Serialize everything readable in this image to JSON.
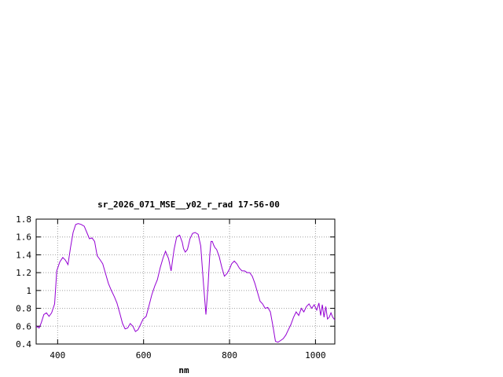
{
  "chart_data": {
    "type": "line",
    "title": "sr_2026_071_MSE__y02_r_rad 17-56-00",
    "xlabel": "nm",
    "ylabel": "",
    "xlim": [
      350,
      1045
    ],
    "ylim": [
      0.4,
      1.8
    ],
    "x_ticks": [
      400,
      600,
      800,
      1000
    ],
    "y_ticks": [
      0.4,
      0.6,
      0.8,
      1,
      1.2,
      1.4,
      1.6,
      1.8
    ],
    "x_tick_labels": [
      "400",
      "600",
      "800",
      "1000"
    ],
    "y_tick_labels": [
      "0.4",
      "0.6",
      "0.8",
      "1",
      "1.2",
      "1.4",
      "1.6",
      "1.8"
    ],
    "grid": true,
    "line_color": "#9400d3",
    "series": [
      {
        "name": "",
        "x": [
          350,
          357,
          362,
          368,
          374,
          380,
          386,
          393,
          398,
          405,
          412,
          418,
          424,
          430,
          436,
          442,
          448,
          455,
          462,
          468,
          474,
          480,
          486,
          492,
          498,
          505,
          512,
          518,
          525,
          532,
          538,
          545,
          551,
          557,
          563,
          569,
          575,
          581,
          587,
          593,
          599,
          606,
          612,
          619,
          626,
          632,
          639,
          645,
          651,
          658,
          664,
          671,
          677,
          684,
          690,
          693,
          697,
          702,
          708,
          714,
          720,
          727,
          733,
          739,
          745,
          750,
          754,
          757,
          760,
          763,
          766,
          770,
          776,
          782,
          788,
          794,
          800,
          805,
          811,
          817,
          823,
          829,
          835,
          841,
          847,
          853,
          859,
          865,
          871,
          877,
          883,
          889,
          895,
          901,
          907,
          913,
          919,
          925,
          931,
          937,
          943,
          949,
          955,
          961,
          967,
          973,
          979,
          985,
          991,
          997,
          1003,
          1008,
          1012,
          1016,
          1020,
          1024,
          1028,
          1032,
          1036,
          1040,
          1045
        ],
        "y": [
          0.6,
          0.58,
          0.64,
          0.73,
          0.75,
          0.71,
          0.75,
          0.85,
          1.22,
          1.32,
          1.37,
          1.34,
          1.29,
          1.48,
          1.65,
          1.74,
          1.75,
          1.74,
          1.72,
          1.65,
          1.58,
          1.59,
          1.55,
          1.39,
          1.35,
          1.3,
          1.18,
          1.08,
          1.0,
          0.93,
          0.86,
          0.74,
          0.63,
          0.57,
          0.58,
          0.63,
          0.6,
          0.54,
          0.56,
          0.62,
          0.68,
          0.71,
          0.82,
          0.95,
          1.05,
          1.12,
          1.26,
          1.36,
          1.44,
          1.36,
          1.22,
          1.46,
          1.6,
          1.62,
          1.54,
          1.47,
          1.43,
          1.46,
          1.58,
          1.64,
          1.65,
          1.63,
          1.5,
          1.1,
          0.73,
          1.05,
          1.4,
          1.55,
          1.55,
          1.51,
          1.48,
          1.46,
          1.38,
          1.26,
          1.16,
          1.19,
          1.24,
          1.3,
          1.33,
          1.3,
          1.25,
          1.22,
          1.22,
          1.2,
          1.2,
          1.16,
          1.08,
          0.98,
          0.88,
          0.85,
          0.8,
          0.81,
          0.76,
          0.6,
          0.43,
          0.42,
          0.44,
          0.46,
          0.5,
          0.56,
          0.62,
          0.7,
          0.76,
          0.72,
          0.8,
          0.76,
          0.82,
          0.85,
          0.8,
          0.84,
          0.78,
          0.86,
          0.72,
          0.84,
          0.7,
          0.82,
          0.68,
          0.7,
          0.75,
          0.7,
          0.67
        ]
      }
    ]
  }
}
